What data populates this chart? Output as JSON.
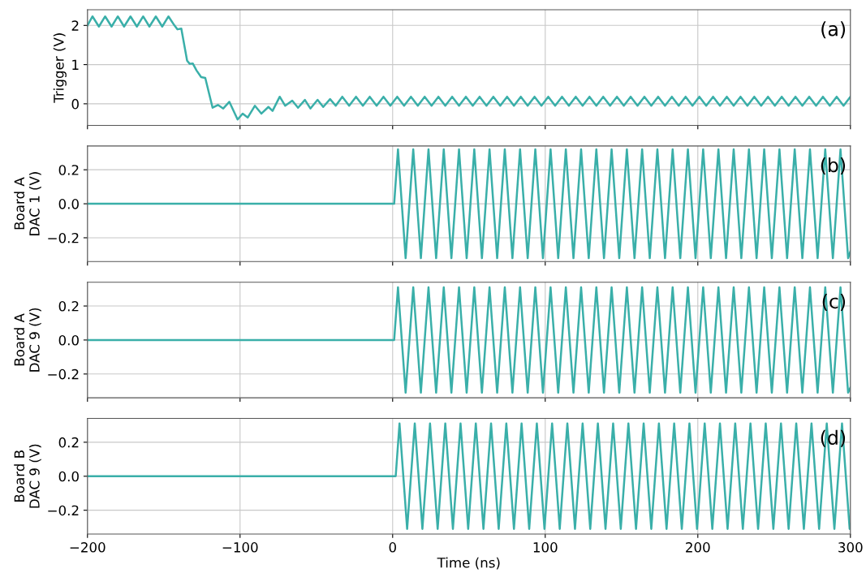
{
  "chart_data": [
    {
      "type": "line",
      "ylabel": "Trigger (V)",
      "annotations": [
        "(a)"
      ],
      "color": "#3aafa9",
      "grid": true,
      "tick_labels": "y",
      "xlim": [
        -200,
        300
      ],
      "ylim": [
        -0.55,
        2.4
      ],
      "yticks": [
        0,
        1,
        2
      ],
      "x": [
        -200,
        -196.7,
        -192.5,
        -188.4,
        -184.2,
        -180.1,
        -176,
        -171.8,
        -167.6,
        -163.5,
        -159.4,
        -155.2,
        -151,
        -146.9,
        -143,
        -141,
        -138.5,
        -134.7,
        -133,
        -131,
        -128.5,
        -125.5,
        -122.8,
        -118,
        -114.5,
        -111,
        -107,
        -101.6,
        -98.3,
        -95,
        -90.3,
        -86,
        -81.4,
        -78.7,
        -74,
        -70.4,
        -65.8,
        -62,
        -57.5,
        -53.9,
        -49.2,
        -45.5,
        -41,
        -37.3,
        -33,
        -28.5,
        -24,
        -19.5,
        -15,
        -10.5,
        -6,
        -1.5,
        3,
        7.5,
        12,
        16.5,
        21,
        25.5,
        30,
        34.5,
        39,
        43.5,
        48,
        52.5,
        57,
        61.5,
        66,
        70.5,
        75,
        79.5,
        84,
        88.5,
        93,
        97.5,
        102,
        106.5,
        111,
        115.5,
        120,
        124.5,
        129,
        133.5,
        138,
        142.5,
        147,
        151.5,
        156,
        160.5,
        165,
        169.5,
        174,
        178.5,
        183,
        187.5,
        192,
        196.5,
        201,
        205.5,
        210,
        214.5,
        219,
        223.5,
        228,
        232.5,
        237,
        241.5,
        246,
        250.5,
        255,
        259.5,
        264,
        268.5,
        273,
        277.5,
        282,
        286.5,
        291,
        295.5,
        300
      ],
      "values": [
        2.0,
        2.23,
        1.97,
        2.23,
        1.97,
        2.23,
        1.97,
        2.23,
        1.97,
        2.23,
        1.97,
        2.23,
        1.97,
        2.23,
        2.0,
        1.9,
        1.92,
        1.1,
        1.02,
        1.03,
        0.85,
        0.68,
        0.66,
        -0.1,
        -0.03,
        -0.12,
        0.05,
        -0.4,
        -0.25,
        -0.35,
        -0.05,
        -0.25,
        -0.08,
        -0.18,
        0.18,
        -0.05,
        0.08,
        -0.1,
        0.1,
        -0.12,
        0.1,
        -0.08,
        0.12,
        -0.05,
        0.18,
        -0.05,
        0.18,
        -0.05,
        0.18,
        -0.05,
        0.18,
        -0.05,
        0.18,
        -0.05,
        0.18,
        -0.05,
        0.18,
        -0.05,
        0.18,
        -0.05,
        0.18,
        -0.05,
        0.18,
        -0.05,
        0.18,
        -0.05,
        0.18,
        -0.05,
        0.18,
        -0.05,
        0.18,
        -0.05,
        0.18,
        -0.05,
        0.18,
        -0.05,
        0.18,
        -0.05,
        0.18,
        -0.05,
        0.18,
        -0.05,
        0.18,
        -0.05,
        0.18,
        -0.05,
        0.18,
        -0.05,
        0.18,
        -0.05,
        0.18,
        -0.05,
        0.18,
        -0.05,
        0.18,
        -0.05,
        0.18,
        -0.05,
        0.18,
        -0.05,
        0.18,
        -0.05,
        0.18,
        -0.05,
        0.18,
        -0.05,
        0.18,
        -0.05,
        0.18,
        -0.05,
        0.18,
        -0.05,
        0.18,
        -0.05,
        0.18,
        -0.05,
        0.18,
        -0.05,
        0.18
      ]
    },
    {
      "type": "line",
      "ylabel": "Board A\nDAC 1 (V)",
      "annotations": [
        "(b)"
      ],
      "color": "#3aafa9",
      "grid": true,
      "tick_labels": "y",
      "xlim": [
        -200,
        300
      ],
      "ylim": [
        -0.34,
        0.34
      ],
      "yticks": [
        {
          "value": -0.2,
          "label": "−0.2"
        },
        {
          "value": 0,
          "label": "0.0"
        },
        {
          "value": 0.2,
          "label": "0.2"
        }
      ],
      "x": [
        -200,
        1,
        3.5,
        8.5,
        13.5,
        18.5,
        23.5,
        28.5,
        33.5,
        38.5,
        43.5,
        48.5,
        53.5,
        58.5,
        63.5,
        68.5,
        73.5,
        78.5,
        83.5,
        88.5,
        93.5,
        98.5,
        103.5,
        108.5,
        113.5,
        118.5,
        123.5,
        128.5,
        133.5,
        138.5,
        143.5,
        148.5,
        153.5,
        158.5,
        163.5,
        168.5,
        173.5,
        178.5,
        183.5,
        188.5,
        193.5,
        198.5,
        203.5,
        208.5,
        213.5,
        218.5,
        223.5,
        228.5,
        233.5,
        238.5,
        243.5,
        248.5,
        253.5,
        258.5,
        263.5,
        268.5,
        273.5,
        278.5,
        283.5,
        288.5,
        293.5,
        298.5,
        300
      ],
      "values": [
        0,
        0,
        0.32,
        -0.32,
        0.32,
        -0.32,
        0.32,
        -0.32,
        0.32,
        -0.32,
        0.32,
        -0.32,
        0.32,
        -0.32,
        0.32,
        -0.32,
        0.32,
        -0.32,
        0.32,
        -0.32,
        0.32,
        -0.32,
        0.32,
        -0.32,
        0.32,
        -0.32,
        0.32,
        -0.32,
        0.32,
        -0.32,
        0.32,
        -0.32,
        0.32,
        -0.32,
        0.32,
        -0.32,
        0.32,
        -0.32,
        0.32,
        -0.32,
        0.32,
        -0.32,
        0.32,
        -0.32,
        0.32,
        -0.32,
        0.32,
        -0.32,
        0.32,
        -0.32,
        0.32,
        -0.32,
        0.32,
        -0.32,
        0.32,
        -0.32,
        0.32,
        -0.32,
        0.32,
        -0.32,
        0.32,
        -0.32,
        -0.28
      ]
    },
    {
      "type": "line",
      "ylabel": "Board A\nDAC 9 (V)",
      "annotations": [
        "(c)"
      ],
      "color": "#3aafa9",
      "grid": true,
      "tick_labels": "y",
      "xlim": [
        -200,
        300
      ],
      "ylim": [
        -0.34,
        0.34
      ],
      "yticks": [
        {
          "value": -0.2,
          "label": "−0.2"
        },
        {
          "value": 0,
          "label": "0.0"
        },
        {
          "value": 0.2,
          "label": "0.2"
        }
      ],
      "x": [
        -200,
        1,
        3.5,
        8.5,
        13.5,
        18.5,
        23.5,
        28.5,
        33.5,
        38.5,
        43.5,
        48.5,
        53.5,
        58.5,
        63.5,
        68.5,
        73.5,
        78.5,
        83.5,
        88.5,
        93.5,
        98.5,
        103.5,
        108.5,
        113.5,
        118.5,
        123.5,
        128.5,
        133.5,
        138.5,
        143.5,
        148.5,
        153.5,
        158.5,
        163.5,
        168.5,
        173.5,
        178.5,
        183.5,
        188.5,
        193.5,
        198.5,
        203.5,
        208.5,
        213.5,
        218.5,
        223.5,
        228.5,
        233.5,
        238.5,
        243.5,
        248.5,
        253.5,
        258.5,
        263.5,
        268.5,
        273.5,
        278.5,
        283.5,
        288.5,
        293.5,
        298.5,
        300
      ],
      "values": [
        0,
        0,
        0.31,
        -0.31,
        0.31,
        -0.31,
        0.31,
        -0.31,
        0.31,
        -0.31,
        0.31,
        -0.31,
        0.31,
        -0.31,
        0.31,
        -0.31,
        0.31,
        -0.31,
        0.31,
        -0.31,
        0.31,
        -0.31,
        0.31,
        -0.31,
        0.31,
        -0.31,
        0.31,
        -0.31,
        0.31,
        -0.31,
        0.31,
        -0.31,
        0.31,
        -0.31,
        0.31,
        -0.31,
        0.31,
        -0.31,
        0.31,
        -0.31,
        0.31,
        -0.31,
        0.31,
        -0.31,
        0.31,
        -0.31,
        0.31,
        -0.31,
        0.31,
        -0.31,
        0.31,
        -0.31,
        0.31,
        -0.31,
        0.31,
        -0.31,
        0.31,
        -0.31,
        0.31,
        -0.31,
        0.31,
        -0.31,
        -0.28
      ]
    },
    {
      "type": "line",
      "ylabel": "Board B\nDAC 9 (V)",
      "xlabel": "Time (ns)",
      "annotations": [
        "(d)"
      ],
      "color": "#3aafa9",
      "grid": true,
      "xlim": [
        -200,
        300
      ],
      "xticks": [
        {
          "value": -200,
          "label": "−200"
        },
        {
          "value": -100,
          "label": "−100"
        },
        0,
        100,
        200,
        300
      ],
      "ylim": [
        -0.34,
        0.34
      ],
      "yticks": [
        {
          "value": -0.2,
          "label": "−0.2"
        },
        {
          "value": 0,
          "label": "0.0"
        },
        {
          "value": 0.2,
          "label": "0.2"
        }
      ],
      "x": [
        -200,
        2,
        4.5,
        9.5,
        14.5,
        19.5,
        24.5,
        29.5,
        34.5,
        39.5,
        44.5,
        49.5,
        54.5,
        59.5,
        64.5,
        69.5,
        74.5,
        79.5,
        84.5,
        89.5,
        94.5,
        99.5,
        104.5,
        109.5,
        114.5,
        119.5,
        124.5,
        129.5,
        134.5,
        139.5,
        144.5,
        149.5,
        154.5,
        159.5,
        164.5,
        169.5,
        174.5,
        179.5,
        184.5,
        189.5,
        194.5,
        199.5,
        204.5,
        209.5,
        214.5,
        219.5,
        224.5,
        229.5,
        234.5,
        239.5,
        244.5,
        249.5,
        254.5,
        259.5,
        264.5,
        269.5,
        274.5,
        279.5,
        284.5,
        289.5,
        294.5,
        299.5,
        300
      ],
      "values": [
        0,
        0,
        0.31,
        -0.31,
        0.31,
        -0.31,
        0.31,
        -0.31,
        0.31,
        -0.31,
        0.31,
        -0.31,
        0.31,
        -0.31,
        0.31,
        -0.31,
        0.31,
        -0.31,
        0.31,
        -0.31,
        0.31,
        -0.31,
        0.31,
        -0.31,
        0.31,
        -0.31,
        0.31,
        -0.31,
        0.31,
        -0.31,
        0.31,
        -0.31,
        0.31,
        -0.31,
        0.31,
        -0.31,
        0.31,
        -0.31,
        0.31,
        -0.31,
        0.31,
        -0.31,
        0.31,
        -0.31,
        0.31,
        -0.31,
        0.31,
        -0.31,
        0.31,
        -0.31,
        0.31,
        -0.31,
        0.31,
        -0.31,
        0.31,
        -0.31,
        0.31,
        -0.31,
        0.31,
        -0.31,
        0.31,
        -0.31,
        -0.28
      ]
    }
  ]
}
